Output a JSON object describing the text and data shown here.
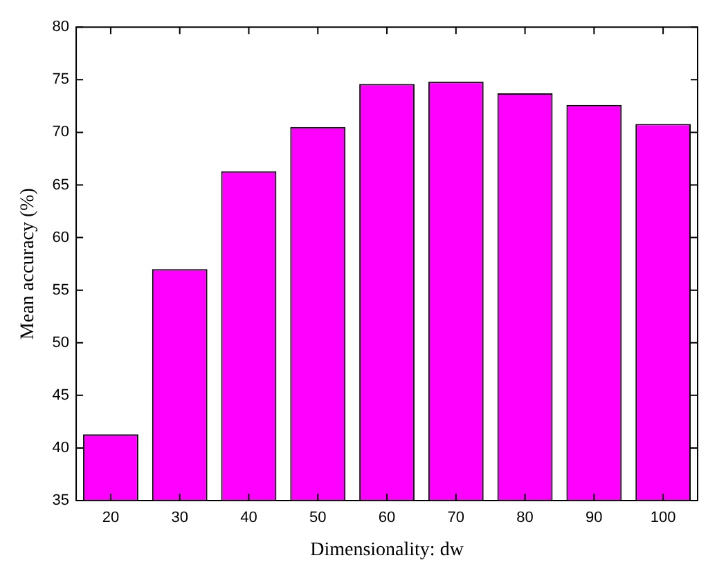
{
  "chart_data": {
    "type": "bar",
    "xlabel": "Dimensionality: dw",
    "ylabel": "Mean accuracy (%)",
    "categories": [
      "20",
      "30",
      "40",
      "50",
      "60",
      "70",
      "80",
      "90",
      "100"
    ],
    "values": [
      41.3,
      57.0,
      66.3,
      70.5,
      74.6,
      74.8,
      73.7,
      72.6,
      70.8
    ],
    "color": "#ff00ff",
    "ylim": [
      35,
      80
    ],
    "yticks": [
      35,
      40,
      45,
      50,
      55,
      60,
      65,
      70,
      75,
      80
    ],
    "grid": false
  }
}
